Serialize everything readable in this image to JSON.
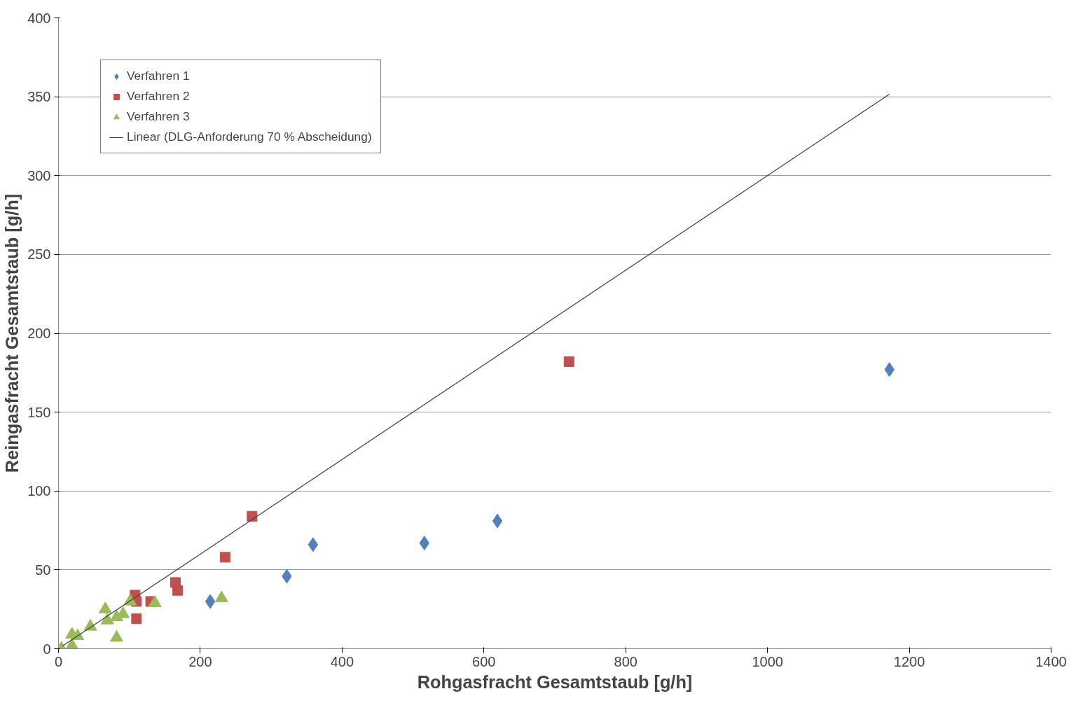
{
  "chart_data": {
    "type": "scatter",
    "xlabel": "Rohgasfracht Gesamtstaub [g/h]",
    "ylabel": "Reingasfracht Gesamtstaub [g/h]",
    "xlim": [
      0,
      1400
    ],
    "xticks": [
      0,
      200,
      400,
      600,
      800,
      1000,
      1200,
      1400
    ],
    "ylim": [
      0,
      400
    ],
    "yticks": [
      0,
      50,
      100,
      150,
      200,
      250,
      300,
      350,
      400
    ],
    "grid": "y",
    "legend": "top left",
    "series": [
      {
        "name": "Verfahren 1",
        "color": "#4f81bd",
        "marker": "diamond",
        "x": [
          214,
          322,
          359,
          516,
          619,
          1172
        ],
        "values": [
          30,
          46,
          66,
          67,
          81,
          177
        ]
      },
      {
        "name": "Verfahren 2",
        "color": "#c0504d",
        "marker": "square",
        "x": [
          720,
          273,
          235,
          165,
          168,
          108,
          110,
          130,
          110
        ],
        "values": [
          182,
          84,
          58,
          42,
          37,
          34,
          30,
          30,
          19
        ]
      },
      {
        "name": "Verfahren 3",
        "color": "#9bbb59",
        "marker": "triangle",
        "x": [
          4,
          19,
          19,
          27,
          45,
          66,
          69,
          82,
          91,
          82,
          101,
          136,
          230
        ],
        "values": [
          0,
          2,
          9,
          8,
          14,
          25,
          18,
          20,
          22,
          7,
          30,
          29,
          32
        ]
      },
      {
        "name": "Linear (DLG-Anforderung 70 % Abscheidung)",
        "type": "line",
        "color": "#404040",
        "marker": "none",
        "line_style": "solid",
        "x": [
          5,
          1172
        ],
        "values": [
          1.5,
          351.6
        ]
      }
    ]
  }
}
